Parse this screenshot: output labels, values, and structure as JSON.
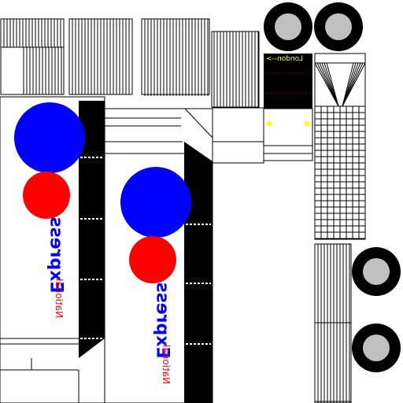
{
  "texture": {
    "brand_word": "Express",
    "operator_word": "National",
    "destination": "London-->"
  },
  "colors": {
    "background": "#ffffff",
    "outline": "#000000",
    "brand_blue": "#0000ff",
    "brand_red": "#ff0000",
    "wheel_hub": "#c0c0c0",
    "destination_text": "#ffff00",
    "headlight": "#ffff00",
    "stripe": "#000000"
  },
  "icons": {
    "wheel": "wheel-icon",
    "headlight": "headlight-icon",
    "logo_blue": "blue-disc-logo",
    "logo_red": "red-disc-logo"
  }
}
